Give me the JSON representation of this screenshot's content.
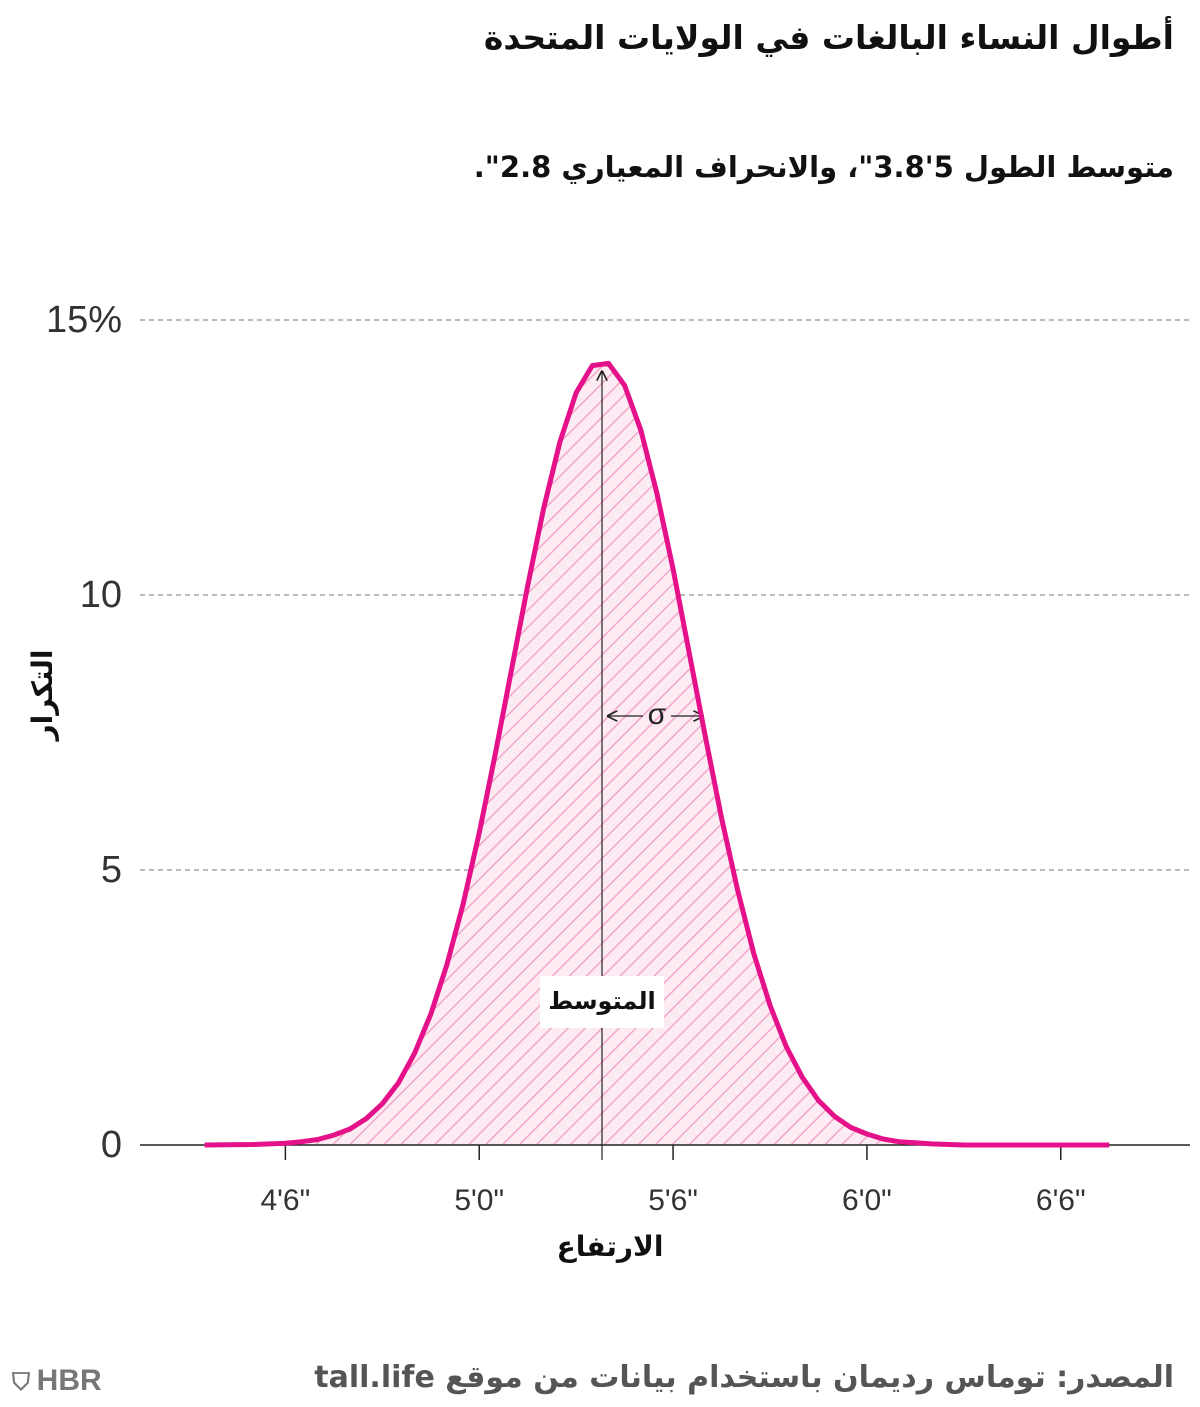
{
  "chart_data": {
    "type": "line",
    "title": "أطوال النساء البالغات في الولايات المتحدة",
    "subtitle": "متوسط الطول 5'3.8\"، والانحراف المعياري 2.8\".",
    "x_label": "الارتفاع",
    "y_label": "التكرار",
    "x": [
      51.5,
      53,
      54,
      54.5,
      55,
      55.5,
      56,
      56.5,
      57,
      57.5,
      58,
      58.5,
      59,
      59.5,
      60,
      60.5,
      61,
      61.5,
      62,
      62.5,
      63,
      63.5,
      64,
      64.5,
      65,
      65.5,
      66,
      66.5,
      67,
      67.5,
      68,
      68.5,
      69,
      69.5,
      70,
      70.5,
      71,
      71.5,
      72,
      72.5,
      73,
      73.5,
      74,
      75,
      77,
      79.5
    ],
    "values": [
      0,
      0.01,
      0.03,
      0.06,
      0.1,
      0.18,
      0.29,
      0.48,
      0.75,
      1.13,
      1.67,
      2.38,
      3.28,
      4.38,
      5.67,
      7.12,
      8.64,
      10.17,
      11.59,
      12.79,
      13.68,
      14.17,
      14.21,
      13.81,
      13.0,
      11.85,
      10.47,
      8.95,
      7.42,
      5.95,
      4.63,
      3.48,
      2.54,
      1.79,
      1.23,
      0.81,
      0.52,
      0.32,
      0.2,
      0.11,
      0.06,
      0.04,
      0.02,
      0,
      0,
      0
    ],
    "color": "#e5118a",
    "xlim": [
      49.5,
      82
    ],
    "ylim": [
      0,
      15
    ],
    "xticks": [
      {
        "value": 54,
        "label": "4'6\""
      },
      {
        "value": 60,
        "label": "5'0\""
      },
      {
        "value": 66,
        "label": "5'6\""
      },
      {
        "value": 72,
        "label": "6'0\""
      },
      {
        "value": 78,
        "label": "6'6\""
      }
    ],
    "yticks": [
      0,
      5,
      10,
      {
        "value": 15,
        "label": "15%"
      }
    ],
    "grid": true,
    "annotations": [
      {
        "text": "المتوسط",
        "x": 63.8,
        "y": 2.6
      },
      {
        "text": "σ",
        "x": 65.5,
        "y": 7.8
      }
    ],
    "source": "المصدر: توماس رديمان باستخدام بيانات من موقع tall.life",
    "logo": "HBR"
  }
}
